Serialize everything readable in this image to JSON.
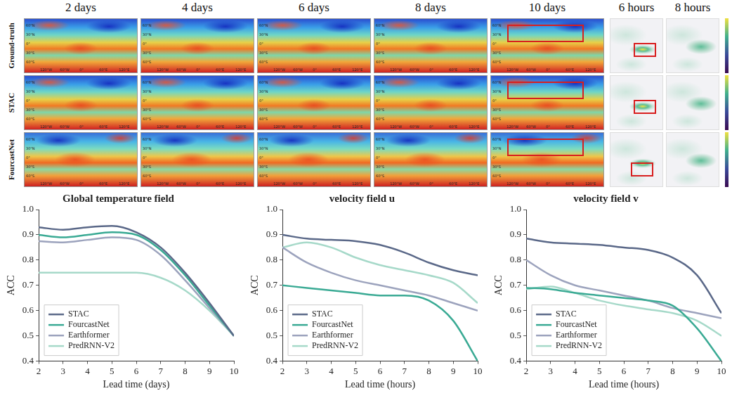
{
  "figure": {
    "columns": [
      "2 days",
      "4 days",
      "6 days",
      "8 days",
      "10 days"
    ],
    "side_columns": [
      "6 hours",
      "8 hours"
    ],
    "rows": [
      "Ground-truth",
      "STAC",
      "FourcastNet"
    ],
    "map_ticks": {
      "lon": [
        "120°W",
        "60°W",
        "0°",
        "60°E",
        "120°E"
      ],
      "lat": [
        "60°N",
        "30°N",
        "0°",
        "30°S",
        "60°S"
      ]
    }
  },
  "chart_data": [
    {
      "type": "line",
      "title": "Global temperature field",
      "x_label": "Lead time (days)",
      "y_label": "ACC",
      "x": [
        2,
        3,
        4,
        5,
        6,
        7,
        8,
        9,
        10
      ],
      "xlim": [
        2,
        10
      ],
      "xticks": [
        2,
        3,
        4,
        5,
        6,
        7,
        8,
        9,
        10
      ],
      "ylim": [
        0.4,
        1.0
      ],
      "yticks": [
        0.4,
        0.5,
        0.6,
        0.7,
        0.8,
        0.9,
        {
          "value": 1,
          "label": "1.0"
        }
      ],
      "grid": false,
      "legend": "lower left",
      "series": [
        {
          "name": "STAC",
          "color": "#5a6888",
          "values": [
            0.93,
            0.92,
            0.93,
            0.935,
            0.91,
            0.85,
            0.75,
            0.63,
            0.5
          ]
        },
        {
          "name": "FourcastNet",
          "color": "#3aaa94",
          "values": [
            0.9,
            0.89,
            0.9,
            0.91,
            0.9,
            0.84,
            0.74,
            0.62,
            0.5
          ]
        },
        {
          "name": "Earthformer",
          "color": "#9ca3bd",
          "values": [
            0.875,
            0.87,
            0.88,
            0.89,
            0.88,
            0.82,
            0.72,
            0.61,
            0.5
          ]
        },
        {
          "name": "PredRNN-V2",
          "color": "#a6d9c9",
          "values": [
            0.75,
            0.75,
            0.75,
            0.75,
            0.75,
            0.73,
            0.68,
            0.6,
            0.5
          ]
        }
      ]
    },
    {
      "type": "line",
      "title": "velocity field u",
      "x_label": "Lead time (hours)",
      "y_label": "ACC",
      "x": [
        2,
        3,
        4,
        5,
        6,
        7,
        8,
        9,
        10
      ],
      "xlim": [
        2,
        10
      ],
      "xticks": [
        2,
        3,
        4,
        5,
        6,
        7,
        8,
        9,
        10
      ],
      "ylim": [
        0.4,
        1.0
      ],
      "yticks": [
        0.4,
        0.5,
        0.6,
        0.7,
        0.8,
        0.9,
        {
          "value": 1,
          "label": "1.0"
        }
      ],
      "grid": false,
      "legend": "lower left",
      "series": [
        {
          "name": "STAC",
          "color": "#5a6888",
          "values": [
            0.9,
            0.885,
            0.88,
            0.875,
            0.86,
            0.83,
            0.79,
            0.76,
            0.74
          ]
        },
        {
          "name": "FourcastNet",
          "color": "#3aaa94",
          "values": [
            0.7,
            0.69,
            0.68,
            0.67,
            0.66,
            0.66,
            0.64,
            0.56,
            0.4
          ]
        },
        {
          "name": "Earthformer",
          "color": "#9ca3bd",
          "values": [
            0.85,
            0.79,
            0.75,
            0.72,
            0.7,
            0.68,
            0.66,
            0.63,
            0.6
          ]
        },
        {
          "name": "PredRNN-V2",
          "color": "#a6d9c9",
          "values": [
            0.85,
            0.87,
            0.85,
            0.81,
            0.78,
            0.76,
            0.74,
            0.71,
            0.63
          ]
        }
      ]
    },
    {
      "type": "line",
      "title": "velocity field v",
      "x_label": "Lead time (hours)",
      "y_label": "ACC",
      "x": [
        2,
        3,
        4,
        5,
        6,
        7,
        8,
        9,
        10
      ],
      "xlim": [
        2,
        10
      ],
      "xticks": [
        2,
        3,
        4,
        5,
        6,
        7,
        8,
        9,
        10
      ],
      "ylim": [
        0.4,
        1.0
      ],
      "yticks": [
        0.4,
        0.5,
        0.6,
        0.7,
        0.8,
        0.9,
        {
          "value": 1,
          "label": "1.0"
        }
      ],
      "grid": false,
      "legend": "lower left",
      "series": [
        {
          "name": "STAC",
          "color": "#5a6888",
          "values": [
            0.885,
            0.87,
            0.865,
            0.86,
            0.85,
            0.84,
            0.81,
            0.74,
            0.59
          ]
        },
        {
          "name": "FourcastNet",
          "color": "#3aaa94",
          "values": [
            0.69,
            0.685,
            0.67,
            0.66,
            0.65,
            0.64,
            0.62,
            0.53,
            0.4
          ]
        },
        {
          "name": "Earthformer",
          "color": "#9ca3bd",
          "values": [
            0.8,
            0.74,
            0.7,
            0.68,
            0.66,
            0.64,
            0.61,
            0.59,
            0.57
          ]
        },
        {
          "name": "PredRNN-V2",
          "color": "#a6d9c9",
          "values": [
            0.685,
            0.695,
            0.67,
            0.64,
            0.62,
            0.605,
            0.59,
            0.56,
            0.5
          ]
        }
      ]
    }
  ]
}
